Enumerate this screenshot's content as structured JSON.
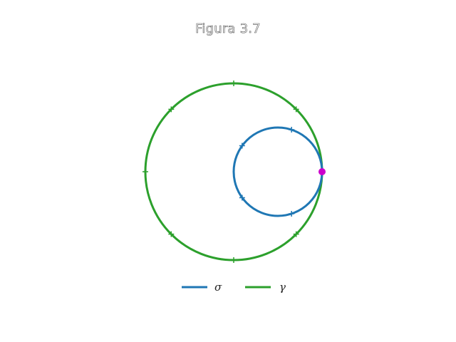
{
  "title": "Figura 3.7",
  "colors": {
    "sigma": "#1f77b4",
    "gamma": "#2ca02c",
    "point": "#cc00cc"
  },
  "curves": [
    {
      "key": "sigma",
      "label": "σ",
      "center": [
        0.5,
        0.0
      ],
      "radius": 0.5,
      "ticks": 5
    },
    {
      "key": "gamma",
      "label": "γ",
      "center": [
        0.0,
        0.0
      ],
      "radius": 1.0,
      "ticks": 8
    }
  ],
  "marked_point": [
    1.0,
    0.0
  ],
  "legend": [
    {
      "label": "σ",
      "color": "#1f77b4"
    },
    {
      "label": "γ",
      "color": "#2ca02c"
    }
  ]
}
